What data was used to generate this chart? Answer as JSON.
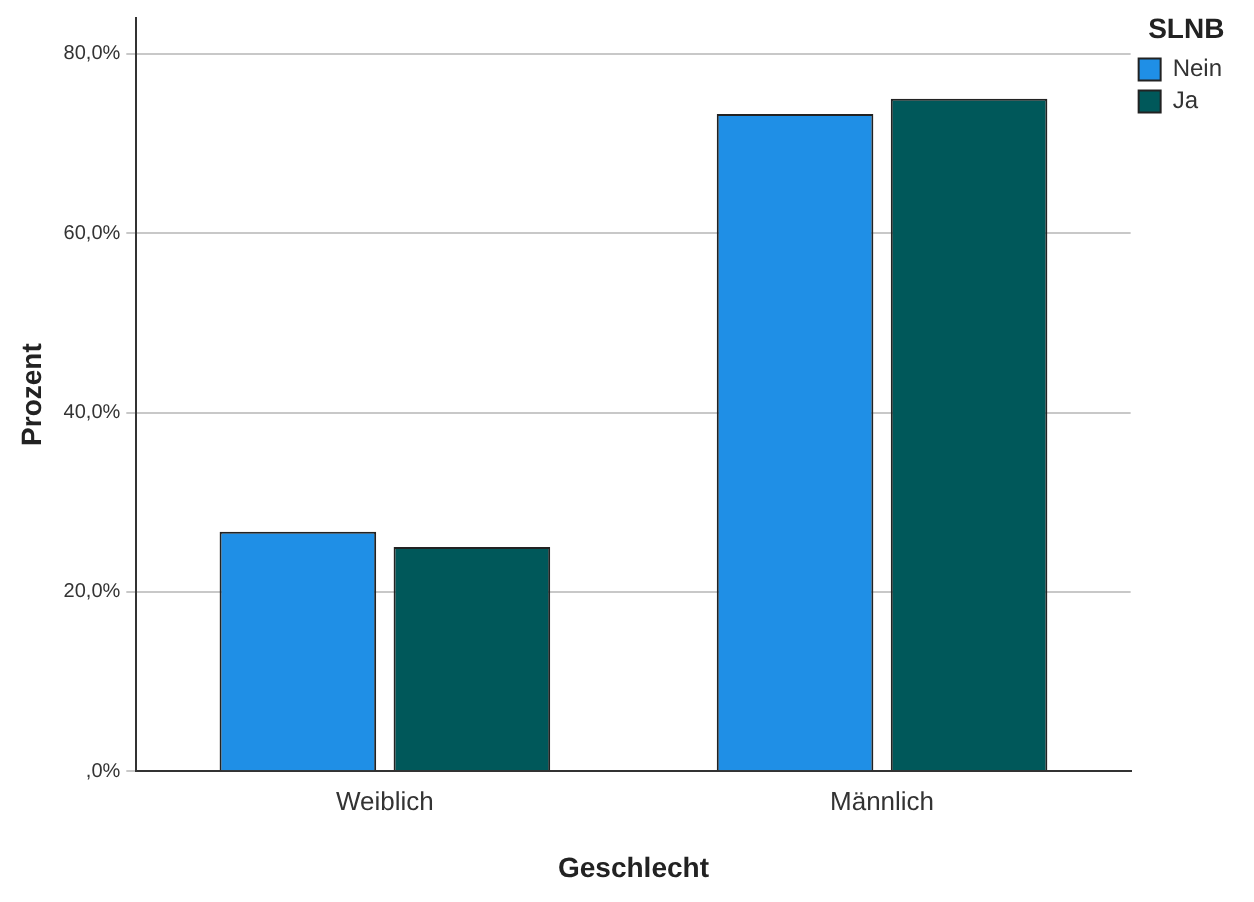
{
  "chart_data": {
    "type": "bar",
    "xlabel": "Geschlecht",
    "ylabel": "Prozent",
    "legend_title": "SLNB",
    "categories": [
      "Weiblich",
      "Männlich"
    ],
    "series": [
      {
        "name": "Nein",
        "color": "#1f8fe6",
        "values": [
          26.7,
          73.3
        ]
      },
      {
        "name": "Ja",
        "color": "#00585a",
        "values": [
          25.0,
          75.0
        ]
      }
    ],
    "ylim": [
      0,
      84
    ],
    "yticks": [
      {
        "value": 0,
        "label": ",0%"
      },
      {
        "value": 20,
        "label": "20,0%"
      },
      {
        "value": 40,
        "label": "40,0%"
      },
      {
        "value": 60,
        "label": "60,0%"
      },
      {
        "value": 80,
        "label": "80,0%"
      }
    ],
    "grid": "y",
    "legend": "right"
  }
}
